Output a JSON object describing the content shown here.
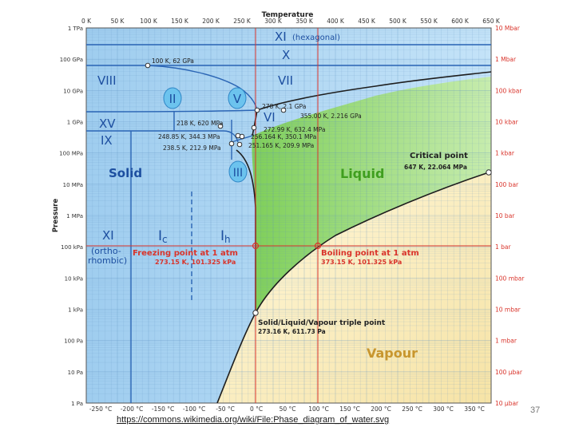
{
  "header": {
    "temperature_label": "Temperature",
    "pressure_label": "Pressure"
  },
  "axes": {
    "kelvin_ticks": [
      "0 K",
      "50 K",
      "100 K",
      "150 K",
      "200 K",
      "250 K",
      "300 K",
      "350 K",
      "400 K",
      "450 K",
      "500 K",
      "550 K",
      "600 K",
      "650 K"
    ],
    "celsius_ticks": [
      "-250 °C",
      "-200 °C",
      "-150 °C",
      "-100 °C",
      "-50 °C",
      "0 °C",
      "50 °C",
      "100 °C",
      "150 °C",
      "200 °C",
      "250 °C",
      "300 °C",
      "350 °C"
    ],
    "pa_ticks": [
      "1 TPa",
      "100 GPa",
      "10 GPa",
      "1 GPa",
      "100 MPa",
      "10 MPa",
      "1 MPa",
      "100 kPa",
      "10 kPa",
      "1 kPa",
      "100 Pa",
      "10 Pa",
      "1 Pa"
    ],
    "bar_ticks": [
      "10 Mbar",
      "1 Mbar",
      "100 kbar",
      "10 kbar",
      "1 kbar",
      "100 bar",
      "10 bar",
      "1 bar",
      "100 mbar",
      "10 mbar",
      "1 mbar",
      "100 µbar",
      "10 µbar"
    ]
  },
  "phases": {
    "xi_hex": "XI",
    "xi_hex_note": "(hexagonal)",
    "x": "X",
    "viii": "VIII",
    "vii": "VII",
    "ii": "II",
    "v": "V",
    "vi": "VI",
    "xv": "XV",
    "ix": "IX",
    "iii": "III",
    "solid": "Solid",
    "liquid": "Liquid",
    "vapour": "Vapour",
    "xi_low": "XI",
    "ortho_1": "(ortho-",
    "ortho_2": "rhombic)",
    "ic_main": "I",
    "ic_sub": "c",
    "ih_main": "I",
    "ih_sub": "h"
  },
  "annotations": {
    "p100k": "100 K, 62 GPa",
    "p278": "278 K, 2.1 GPa",
    "p355": "355.00 K, 2.216 GPa",
    "p218": "218 K, 620 MPa",
    "p272": "272.99 K, 632.4 MPa",
    "p248": "248.85 K, 344.3 MPa",
    "p256": "256.164 K, 350.1 MPa",
    "p238": "238.5 K, 212.9 MPa",
    "p251": "251.165 K, 209.9 MPa",
    "critical_title": "Critical point",
    "critical_value": "647 K, 22.064 MPa",
    "freezing_title": "Freezing point at 1 atm",
    "freezing_value": "273.15 K, 101.325 kPa",
    "boiling_title": "Boiling point at 1 atm",
    "boiling_value": "373.15 K, 101.325 kPa",
    "triple_title": "Solid/Liquid/Vapour triple point",
    "triple_value": "273.16 K, 611.73 Pa"
  },
  "colors": {
    "solid": "#a8d4f2",
    "liquid": "#a9dc8e",
    "vapour": "#f7e8b8",
    "blue_text": "#1d4fa0",
    "red": "#d9342b",
    "green_text": "#3f9e1e",
    "vapour_text": "#c8962e"
  },
  "footer": {
    "source_url": "https://commons.wikimedia.org/wiki/File:Phase_diagram_of_water.svg",
    "slide_number": "37"
  }
}
